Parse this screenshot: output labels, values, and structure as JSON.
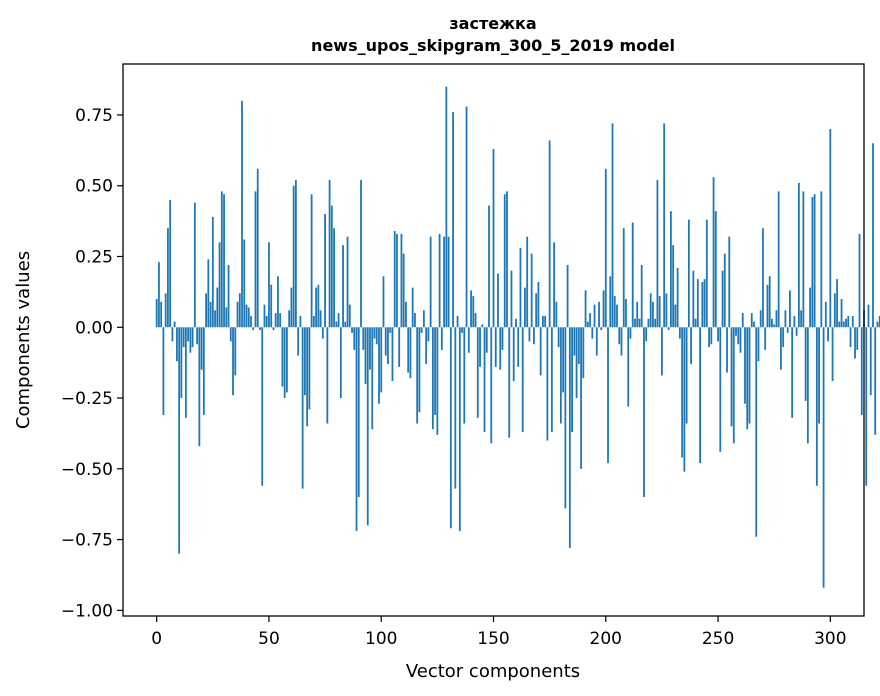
{
  "chart_data": {
    "type": "bar",
    "title_line1": "застежка",
    "title_line2": "news_upos_skipgram_300_5_2019 model",
    "xlabel": "Vector components",
    "ylabel": "Components values",
    "xlim": [
      -15,
      315
    ],
    "ylim": [
      -1.02,
      0.93
    ],
    "xticks": [
      0,
      50,
      100,
      150,
      200,
      250,
      300
    ],
    "xtick_labels": [
      "0",
      "50",
      "100",
      "150",
      "200",
      "250",
      "300"
    ],
    "yticks": [
      -1.0,
      -0.75,
      -0.5,
      -0.25,
      0.0,
      0.25,
      0.5,
      0.75
    ],
    "ytick_labels": [
      "−1.00",
      "−0.75",
      "−0.50",
      "−0.25",
      "0.00",
      "0.25",
      "0.50",
      "0.75"
    ],
    "bar_color": "#1f77b4",
    "values": [
      0.1,
      0.23,
      0.09,
      -0.31,
      0.12,
      0.35,
      0.45,
      -0.05,
      0.02,
      -0.12,
      -0.8,
      -0.25,
      -0.07,
      -0.32,
      -0.05,
      -0.09,
      -0.07,
      0.44,
      -0.06,
      -0.42,
      -0.15,
      -0.31,
      0.12,
      0.24,
      0.09,
      0.39,
      0.06,
      0.14,
      0.3,
      0.48,
      0.47,
      0.07,
      0.22,
      -0.05,
      -0.24,
      -0.17,
      0.09,
      0.12,
      0.8,
      0.31,
      0.08,
      0.07,
      0.04,
      -0.01,
      0.48,
      0.56,
      -0.01,
      -0.56,
      0.08,
      0.04,
      0.3,
      0.15,
      -0.01,
      0.05,
      0.18,
      0.05,
      -0.21,
      -0.25,
      -0.23,
      0.06,
      0.14,
      0.5,
      0.52,
      -0.1,
      0.04,
      -0.57,
      -0.24,
      -0.35,
      -0.29,
      0.47,
      0.04,
      0.14,
      0.15,
      0.06,
      -0.04,
      0.4,
      -0.34,
      0.52,
      0.43,
      0.35,
      0.02,
      0.05,
      -0.25,
      0.29,
      0.02,
      0.32,
      0.08,
      -0.02,
      -0.08,
      -0.72,
      -0.6,
      0.52,
      -0.08,
      -0.2,
      -0.7,
      -0.15,
      -0.36,
      -0.04,
      -0.06,
      -0.27,
      -0.23,
      0.18,
      -0.1,
      -0.13,
      -0.02,
      -0.19,
      0.34,
      0.33,
      -0.14,
      0.33,
      0.26,
      0.09,
      -0.16,
      -0.18,
      0.14,
      0.05,
      -0.34,
      -0.3,
      -0.02,
      0.06,
      -0.13,
      -0.05,
      0.32,
      -0.36,
      -0.31,
      -0.38,
      0.33,
      -0.08,
      0.32,
      0.85,
      0.32,
      -0.71,
      0.76,
      -0.57,
      0.04,
      -0.72,
      -0.02,
      -0.34,
      0.78,
      -0.09,
      0.13,
      0.11,
      0.05,
      -0.32,
      -0.14,
      0.01,
      -0.37,
      -0.09,
      0.43,
      -0.41,
      0.63,
      -0.14,
      0.19,
      -0.15,
      -0.08,
      0.47,
      0.48,
      -0.39,
      0.2,
      -0.19,
      0.03,
      -0.14,
      0.28,
      -0.37,
      0.14,
      0.32,
      -0.05,
      0.26,
      -0.06,
      0.12,
      0.16,
      -0.17,
      0.04,
      0.04,
      -0.4,
      0.66,
      -0.37,
      0.3,
      0.09,
      -0.07,
      -0.34,
      -0.23,
      -0.64,
      0.22,
      -0.78,
      -0.37,
      -0.1,
      -0.25,
      -0.13,
      -0.5,
      -0.18,
      0.13,
      0.02,
      0.05,
      -0.04,
      0.08,
      -0.1,
      0.09,
      -0.01,
      0.13,
      0.56,
      -0.48,
      0.18,
      0.72,
      0.11,
      0.08,
      -0.06,
      -0.1,
      0.35,
      0.1,
      -0.28,
      -0.04,
      0.37,
      0.03,
      0.09,
      0.03,
      0.22,
      -0.6,
      -0.05,
      0.03,
      0.12,
      0.09,
      0.03,
      0.52,
      0.11,
      -0.17,
      0.72,
      0.12,
      -0.01,
      0.41,
      0.29,
      0.08,
      0.21,
      -0.04,
      -0.46,
      -0.51,
      -0.34,
      0.38,
      -0.13,
      0.2,
      0.03,
      0.17,
      -0.48,
      0.16,
      0.17,
      0.38,
      -0.07,
      -0.06,
      0.53,
      0.41,
      -0.05,
      -0.44,
      0.2,
      0.26,
      -0.16,
      0.32,
      -0.35,
      -0.41,
      -0.03,
      -0.06,
      -0.09,
      0.05,
      -0.27,
      -0.36,
      -0.34,
      0.05,
      0.02,
      -0.74,
      -0.12,
      0.06,
      0.35,
      -0.08,
      0.15,
      0.18,
      0.03,
      0.01,
      0.06,
      0.48,
      -0.15,
      -0.07,
      0.06,
      -0.02,
      0.13,
      -0.32,
      0.04,
      -0.03,
      0.51,
      0.06,
      0.48,
      -0.26,
      -0.41,
      0.14,
      0.46,
      0.47,
      -0.56,
      -0.34,
      0.48,
      -0.92,
      0.09,
      -0.05,
      0.7
    ],
    "extra_values": [
      -0.19,
      0.12,
      0.17,
      0.02,
      0.1,
      0.02,
      0.03,
      0.04,
      -0.07,
      0.04,
      -0.11,
      -0.08,
      0.33,
      -0.31,
      0.06,
      -0.56,
      0.08,
      -0.24,
      0.65,
      -0.38,
      0.02,
      0.04
    ]
  }
}
